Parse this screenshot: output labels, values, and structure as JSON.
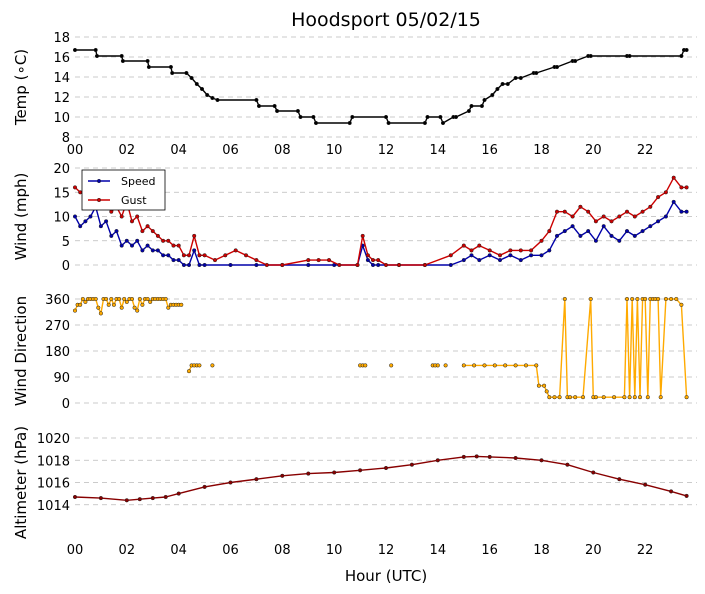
{
  "title": "Hoodsport 05/02/15",
  "xlabel": "Hour (UTC)",
  "x_tick_labels": [
    "00",
    "02",
    "04",
    "06",
    "08",
    "10",
    "12",
    "14",
    "16",
    "18",
    "20",
    "22"
  ],
  "chart_data": [
    {
      "type": "line",
      "name": "temperature",
      "ylabel": "Temp (∘C)",
      "ylim": [
        8,
        18
      ],
      "yticks": [
        8,
        10,
        12,
        14,
        16,
        18
      ],
      "xlim": [
        0,
        24
      ],
      "grid": "horizontal dashed",
      "series": [
        {
          "color": "#000000",
          "x": [
            0,
            0.8,
            0.85,
            1.8,
            1.85,
            2.8,
            2.85,
            3.7,
            3.75,
            4.3,
            4.5,
            4.7,
            4.9,
            5.1,
            5.3,
            5.5,
            7.0,
            7.1,
            7.7,
            7.8,
            8.6,
            8.7,
            9.2,
            9.3,
            10.6,
            10.7,
            12.0,
            12.1,
            13.5,
            13.6,
            14.1,
            14.2,
            14.6,
            14.7,
            15.2,
            15.3,
            15.7,
            15.8,
            16.1,
            16.3,
            16.5,
            16.7,
            17.0,
            17.2,
            17.7,
            17.8,
            18.5,
            18.6,
            19.2,
            19.3,
            19.8,
            19.9,
            21.3,
            21.4,
            23.4,
            23.5,
            23.6
          ],
          "y": [
            16.7,
            16.7,
            16.1,
            16.1,
            15.6,
            15.6,
            15.0,
            15.0,
            14.4,
            14.4,
            13.9,
            13.3,
            12.8,
            12.2,
            11.9,
            11.7,
            11.7,
            11.1,
            11.1,
            10.6,
            10.6,
            10.0,
            10.0,
            9.4,
            9.4,
            10.0,
            10.0,
            9.4,
            9.4,
            10.0,
            10.0,
            9.4,
            10.0,
            10.0,
            10.6,
            11.1,
            11.1,
            11.7,
            12.2,
            12.8,
            13.3,
            13.3,
            13.9,
            13.9,
            14.4,
            14.4,
            15.0,
            15.0,
            15.6,
            15.6,
            16.1,
            16.1,
            16.1,
            16.1,
            16.1,
            16.7,
            16.7
          ]
        }
      ]
    },
    {
      "type": "line",
      "name": "wind",
      "ylabel": "Wind (mph)",
      "ylim": [
        0,
        20
      ],
      "yticks": [
        0,
        5,
        10,
        15,
        20
      ],
      "xlim": [
        0,
        24
      ],
      "legend": "top-left",
      "grid": "horizontal dashed",
      "series": [
        {
          "name": "Speed",
          "color": "#0000aa",
          "x": [
            0,
            0.2,
            0.4,
            0.6,
            0.8,
            1.0,
            1.2,
            1.4,
            1.6,
            1.8,
            2.0,
            2.2,
            2.4,
            2.6,
            2.8,
            3.0,
            3.2,
            3.4,
            3.6,
            3.8,
            4.0,
            4.2,
            4.4,
            4.6,
            4.8,
            5.0,
            6.0,
            7.0,
            8.0,
            9.0,
            10.0,
            10.9,
            11.1,
            11.3,
            11.5,
            11.7,
            12.5,
            13.5,
            14.5,
            15.0,
            15.3,
            15.6,
            16.0,
            16.4,
            16.8,
            17.2,
            17.6,
            18.0,
            18.3,
            18.6,
            18.9,
            19.2,
            19.5,
            19.8,
            20.1,
            20.4,
            20.7,
            21.0,
            21.3,
            21.6,
            21.9,
            22.2,
            22.5,
            22.8,
            23.1,
            23.4,
            23.6
          ],
          "y": [
            10,
            8,
            9,
            10,
            12,
            8,
            9,
            6,
            7,
            4,
            5,
            4,
            5,
            3,
            4,
            3,
            3,
            2,
            2,
            1,
            1,
            0,
            0,
            3,
            0,
            0,
            0,
            0,
            0,
            0,
            0,
            0,
            4,
            1,
            0,
            0,
            0,
            0,
            0,
            1,
            2,
            1,
            2,
            1,
            2,
            1,
            2,
            2,
            3,
            6,
            7,
            8,
            6,
            7,
            5,
            8,
            6,
            5,
            7,
            6,
            7,
            8,
            9,
            10,
            13,
            11,
            11
          ]
        },
        {
          "name": "Gust",
          "color": "#cc0000",
          "x": [
            0,
            0.2,
            0.4,
            0.6,
            0.8,
            1.0,
            1.2,
            1.4,
            1.6,
            1.8,
            2.0,
            2.2,
            2.4,
            2.6,
            2.8,
            3.0,
            3.2,
            3.4,
            3.6,
            3.8,
            4.0,
            4.2,
            4.4,
            4.6,
            4.8,
            5.0,
            5.4,
            5.8,
            6.2,
            6.6,
            7.0,
            7.4,
            8.0,
            9.0,
            9.4,
            9.8,
            10.2,
            10.9,
            11.1,
            11.3,
            11.5,
            11.7,
            12.0,
            12.5,
            13.5,
            14.5,
            15.0,
            15.3,
            15.6,
            16.0,
            16.4,
            16.8,
            17.2,
            17.6,
            18.0,
            18.3,
            18.6,
            18.9,
            19.2,
            19.5,
            19.8,
            20.1,
            20.4,
            20.7,
            21.0,
            21.3,
            21.6,
            21.9,
            22.2,
            22.5,
            22.8,
            23.1,
            23.4,
            23.6
          ],
          "y": [
            16,
            15,
            15,
            17,
            16,
            13,
            14,
            11,
            12,
            10,
            13,
            9,
            10,
            7,
            8,
            7,
            6,
            5,
            5,
            4,
            4,
            2,
            2,
            6,
            2,
            2,
            1,
            2,
            3,
            2,
            1,
            0,
            0,
            1,
            1,
            1,
            0,
            0,
            6,
            2,
            1,
            1,
            0,
            0,
            0,
            2,
            4,
            3,
            4,
            3,
            2,
            3,
            3,
            3,
            5,
            7,
            11,
            11,
            10,
            12,
            11,
            9,
            10,
            9,
            10,
            11,
            10,
            11,
            12,
            14,
            15,
            18,
            16,
            16
          ]
        }
      ]
    },
    {
      "type": "line",
      "name": "wind direction",
      "ylabel": "Wind Direction",
      "ylim": [
        0,
        360
      ],
      "yticks": [
        0,
        90,
        180,
        270,
        360
      ],
      "xlim": [
        0,
        24
      ],
      "grid": "horizontal dashed",
      "series": [
        {
          "color": "#ffaa00",
          "x": [
            0,
            0.1,
            0.2,
            0.3,
            0.4,
            0.5,
            0.6,
            0.7,
            0.8,
            0.9,
            1.0,
            1.1,
            1.2,
            1.3,
            1.4,
            1.5,
            1.6,
            1.7,
            1.8,
            1.9,
            2.0,
            2.1,
            2.2,
            2.3,
            2.4,
            2.5,
            2.6,
            2.7,
            2.8,
            2.9,
            3.0,
            3.1,
            3.2,
            3.3,
            3.4,
            3.5,
            3.6,
            3.7,
            3.8,
            3.9,
            4.0,
            4.1
          ],
          "y": [
            320,
            340,
            340,
            360,
            350,
            360,
            360,
            360,
            360,
            330,
            310,
            360,
            360,
            340,
            360,
            340,
            360,
            360,
            330,
            360,
            350,
            360,
            360,
            330,
            320,
            360,
            340,
            360,
            360,
            350,
            360,
            360,
            360,
            360,
            360,
            360,
            330,
            340,
            340,
            340,
            340,
            340
          ]
        },
        {
          "color": "#ffaa00",
          "x": [
            4.4,
            4.5,
            4.6,
            4.7,
            4.8
          ],
          "y": [
            110,
            130,
            130,
            130,
            130
          ]
        },
        {
          "color": "#ffaa00",
          "x": [
            5.3
          ],
          "y": [
            130
          ]
        },
        {
          "color": "#ffaa00",
          "x": [
            11.0,
            11.1,
            11.2
          ],
          "y": [
            130,
            130,
            130
          ]
        },
        {
          "color": "#ffaa00",
          "x": [
            12.2
          ],
          "y": [
            130
          ]
        },
        {
          "color": "#ffaa00",
          "x": [
            13.8,
            13.9,
            14.0
          ],
          "y": [
            130,
            130,
            130
          ]
        },
        {
          "color": "#ffaa00",
          "x": [
            14.3
          ],
          "y": [
            130
          ]
        },
        {
          "color": "#ffaa00",
          "x": [
            15.0,
            15.4,
            15.8,
            16.2,
            16.6,
            17.0,
            17.4,
            17.8,
            17.9,
            18.1,
            18.2,
            18.3,
            18.5,
            18.7,
            18.9,
            19.0,
            19.1,
            19.3,
            19.6,
            19.9,
            20.0,
            20.1,
            20.4,
            20.8,
            21.2,
            21.3,
            21.4,
            21.5,
            21.6,
            21.7,
            21.8,
            21.9,
            22.0,
            22.1,
            22.2,
            22.3,
            22.4,
            22.5,
            22.6,
            22.8,
            23.0,
            23.2,
            23.4,
            23.6
          ],
          "y": [
            130,
            130,
            130,
            130,
            130,
            130,
            130,
            130,
            60,
            60,
            40,
            20,
            20,
            20,
            360,
            20,
            20,
            20,
            20,
            360,
            20,
            20,
            20,
            20,
            20,
            360,
            20,
            360,
            20,
            360,
            20,
            360,
            360,
            20,
            360,
            360,
            360,
            360,
            20,
            360,
            360,
            360,
            340,
            20
          ]
        }
      ]
    },
    {
      "type": "line",
      "name": "altimeter",
      "ylabel": "Altimeter (hPa)",
      "ylim": [
        1012,
        1020
      ],
      "yticks": [
        1014,
        1016,
        1018,
        1020
      ],
      "xlim": [
        0,
        24
      ],
      "grid": "horizontal dashed",
      "series": [
        {
          "color": "#880000",
          "x": [
            0,
            1.0,
            2.0,
            2.5,
            3.0,
            3.5,
            4.0,
            5.0,
            6.0,
            7.0,
            8.0,
            9.0,
            10.0,
            11.0,
            12.0,
            13.0,
            14.0,
            15.0,
            15.5,
            16.0,
            17.0,
            18.0,
            19.0,
            20.0,
            21.0,
            22.0,
            23.0,
            23.6
          ],
          "y": [
            1014.7,
            1014.6,
            1014.4,
            1014.5,
            1014.6,
            1014.7,
            1015.0,
            1015.6,
            1016.0,
            1016.3,
            1016.6,
            1016.8,
            1016.9,
            1017.1,
            1017.3,
            1017.6,
            1018.0,
            1018.3,
            1018.35,
            1018.3,
            1018.2,
            1018.0,
            1017.6,
            1016.9,
            1016.3,
            1015.8,
            1015.2,
            1014.8
          ]
        }
      ]
    }
  ]
}
